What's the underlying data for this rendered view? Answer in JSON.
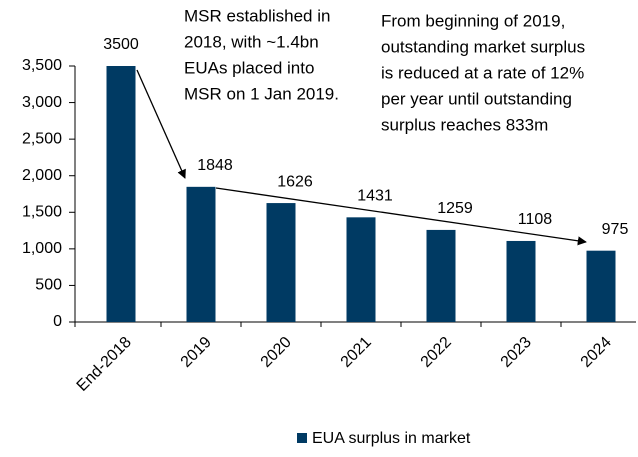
{
  "chart_data": {
    "type": "bar",
    "categories": [
      "End-2018",
      "2019",
      "2020",
      "2021",
      "2022",
      "2023",
      "2024"
    ],
    "series": [
      {
        "name": "EUA surplus in market",
        "color": "#003a63",
        "values": [
          3500,
          1848,
          1626,
          1431,
          1259,
          1108,
          975
        ]
      }
    ],
    "ylim": [
      0,
      3500
    ],
    "yticks": [
      0,
      500,
      {
        "value": 1000,
        "label": "1,000"
      },
      {
        "value": 1500,
        "label": "1,500"
      },
      {
        "value": 2000,
        "label": "2,000"
      },
      {
        "value": 2500,
        "label": "2,500"
      },
      {
        "value": 3000,
        "label": "3,000"
      },
      {
        "value": 3500,
        "label": "3,500"
      }
    ],
    "annotations": [
      {
        "lines": [
          "MSR established in",
          "2018, with ~1.4bn",
          "EUAs placed into",
          "MSR on 1 Jan 2019."
        ]
      },
      {
        "lines": [
          "From beginning of 2019,",
          "outstanding market surplus",
          "is reduced at a rate of 12%",
          "per year until outstanding",
          "surplus reaches 833m"
        ]
      }
    ]
  }
}
